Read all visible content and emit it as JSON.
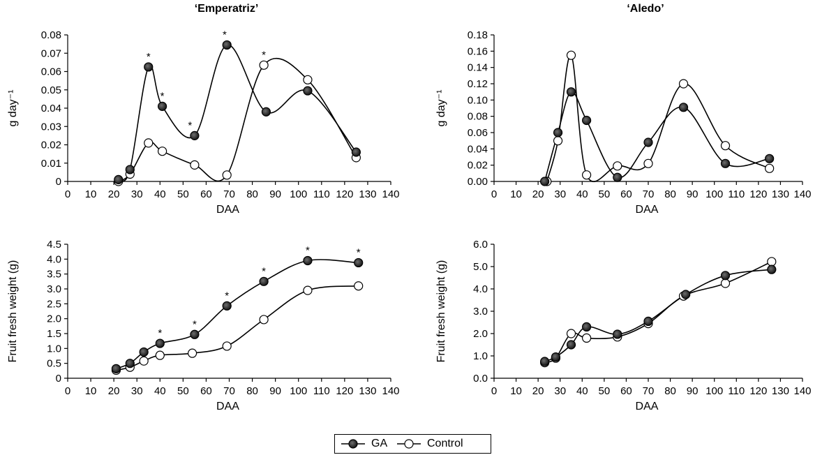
{
  "chart_data": [
    {
      "type": "line",
      "title": "‘Emperatriz’",
      "xlabel": "DAA",
      "ylabel": "g day⁻¹",
      "xlim": [
        0,
        140
      ],
      "ylim": [
        0,
        0.08
      ],
      "xticks": [
        "0",
        "10",
        "20",
        "30",
        "40",
        "50",
        "60",
        "70",
        "80",
        "90",
        "100",
        "110",
        "120",
        "130",
        "140"
      ],
      "yticks": [
        "0",
        "0.01",
        "0.02",
        "0.03",
        "0.04",
        "0.05",
        "0.06",
        "0.07",
        "0.08"
      ],
      "series": [
        {
          "name": "GA",
          "x": [
            22,
            27,
            35,
            41,
            55,
            69,
            86,
            104,
            125
          ],
          "y": [
            0.001,
            0.0065,
            0.0625,
            0.041,
            0.025,
            0.0745,
            0.038,
            0.0495,
            0.016
          ]
        },
        {
          "name": "Control",
          "x": [
            22,
            27,
            35,
            41,
            55,
            69,
            85,
            104,
            125
          ],
          "y": [
            0.0,
            0.004,
            0.021,
            0.0165,
            0.009,
            0.0035,
            0.0635,
            0.0555,
            0.013
          ]
        }
      ],
      "annotations": [
        {
          "text": "*",
          "x": 35,
          "y": 0.0625
        },
        {
          "text": "*",
          "x": 41,
          "y": 0.041
        },
        {
          "text": "*",
          "x": 53,
          "y": 0.025
        },
        {
          "text": "*",
          "x": 68,
          "y": 0.0745
        },
        {
          "text": "*",
          "x": 85,
          "y": 0.0635
        }
      ]
    },
    {
      "type": "line",
      "title": "‘Aledo’",
      "xlabel": "DAA",
      "ylabel": "g day⁻¹",
      "xlim": [
        0,
        140
      ],
      "ylim": [
        0,
        0.18
      ],
      "xticks": [
        "0",
        "10",
        "20",
        "30",
        "40",
        "50",
        "60",
        "70",
        "80",
        "90",
        "100",
        "110",
        "120",
        "130",
        "140"
      ],
      "yticks": [
        "0.00",
        "0.02",
        "0.04",
        "0.06",
        "0.08",
        "0.10",
        "0.12",
        "0.14",
        "0.16",
        "0.18"
      ],
      "series": [
        {
          "name": "GA",
          "x": [
            23,
            29,
            35,
            42,
            56,
            70,
            86,
            105,
            125
          ],
          "y": [
            0.0,
            0.06,
            0.11,
            0.075,
            0.005,
            0.048,
            0.091,
            0.022,
            0.028
          ]
        },
        {
          "name": "Control",
          "x": [
            24,
            29,
            35,
            42,
            56,
            70,
            86,
            105,
            125
          ],
          "y": [
            0.0,
            0.05,
            0.155,
            0.008,
            0.019,
            0.022,
            0.12,
            0.044,
            0.016
          ]
        }
      ],
      "annotations": []
    },
    {
      "type": "line",
      "title": "",
      "xlabel": "DAA",
      "ylabel": "Fruit fresh weight (g)",
      "xlim": [
        0,
        140
      ],
      "ylim": [
        0,
        4.5
      ],
      "xticks": [
        "0",
        "10",
        "20",
        "30",
        "40",
        "50",
        "60",
        "70",
        "80",
        "90",
        "100",
        "110",
        "120",
        "130",
        "140"
      ],
      "yticks": [
        "0",
        "0.5",
        "1.0",
        "1.5",
        "2.0",
        "2.5",
        "3.0",
        "3.5",
        "4.0",
        "4.5"
      ],
      "series": [
        {
          "name": "GA",
          "x": [
            21,
            27,
            33,
            40,
            55,
            69,
            85,
            104,
            126
          ],
          "y": [
            0.32,
            0.5,
            0.88,
            1.17,
            1.47,
            2.43,
            3.25,
            3.95,
            3.88
          ]
        },
        {
          "name": "Control",
          "x": [
            21,
            27,
            33,
            40,
            54,
            69,
            85,
            104,
            126
          ],
          "y": [
            0.27,
            0.37,
            0.58,
            0.77,
            0.84,
            1.08,
            1.97,
            2.95,
            3.1
          ]
        }
      ],
      "annotations": [
        {
          "text": "*",
          "x": 40,
          "y": 1.17
        },
        {
          "text": "*",
          "x": 55,
          "y": 1.47
        },
        {
          "text": "*",
          "x": 69,
          "y": 2.43
        },
        {
          "text": "*",
          "x": 85,
          "y": 3.25
        },
        {
          "text": "*",
          "x": 104,
          "y": 3.95
        },
        {
          "text": "*",
          "x": 126,
          "y": 3.88
        }
      ]
    },
    {
      "type": "line",
      "title": "",
      "xlabel": "DAA",
      "ylabel": "Fruit fresh weight (g)",
      "xlim": [
        0,
        140
      ],
      "ylim": [
        0,
        6.0
      ],
      "xticks": [
        "0",
        "10",
        "20",
        "30",
        "40",
        "50",
        "60",
        "70",
        "80",
        "90",
        "100",
        "110",
        "120",
        "130",
        "140"
      ],
      "yticks": [
        "0.0",
        "1.0",
        "2.0",
        "3.0",
        "4.0",
        "5.0",
        "6.0"
      ],
      "series": [
        {
          "name": "GA",
          "x": [
            23,
            28,
            35,
            42,
            56,
            70,
            87,
            105,
            126
          ],
          "y": [
            0.75,
            0.95,
            1.5,
            2.3,
            1.97,
            2.55,
            3.75,
            4.6,
            4.87
          ]
        },
        {
          "name": "Control",
          "x": [
            23,
            28,
            35,
            42,
            56,
            70,
            86,
            105,
            126
          ],
          "y": [
            0.7,
            0.9,
            2.0,
            1.8,
            1.85,
            2.45,
            3.68,
            4.25,
            5.22
          ]
        }
      ],
      "annotations": []
    }
  ],
  "legend": {
    "placement": "bottom-center",
    "items": [
      {
        "label": "GA",
        "marker": "filled-circle"
      },
      {
        "label": "Control",
        "marker": "open-circle"
      }
    ]
  }
}
